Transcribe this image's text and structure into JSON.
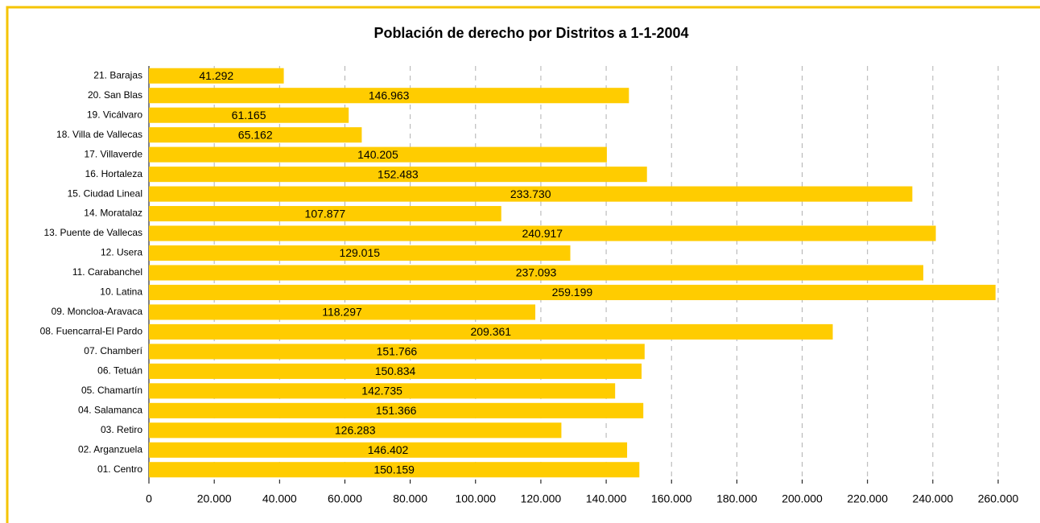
{
  "chart_data": {
    "type": "barh",
    "title": "Población de derecho por Distritos a 1-1-2004",
    "categories": [
      "21. Barajas",
      "20. San Blas",
      "19. Vicálvaro",
      "18. Villa de Vallecas",
      "17. Villaverde",
      "16. Hortaleza",
      "15. Ciudad Lineal",
      "14. Moratalaz",
      "13. Puente de Vallecas",
      "12. Usera",
      "11. Carabanchel",
      "10. Latina",
      "09. Moncloa-Aravaca",
      "08. Fuencarral-El Pardo",
      "07. Chamberí",
      "06. Tetuán",
      "05. Chamartín",
      "04. Salamanca",
      "03. Retiro",
      "02. Arganzuela",
      "01. Centro"
    ],
    "values": [
      41292,
      146963,
      61165,
      65162,
      140205,
      152483,
      233730,
      107877,
      240917,
      129015,
      237093,
      259199,
      118297,
      209361,
      151766,
      150834,
      142735,
      151366,
      126283,
      146402,
      150159
    ],
    "value_labels": [
      "41.292",
      "146.963",
      "61.165",
      "65.162",
      "140.205",
      "152.483",
      "233.730",
      "107.877",
      "240.917",
      "129.015",
      "237.093",
      "259.199",
      "118.297",
      "209.361",
      "151.766",
      "150.834",
      "142.735",
      "151.366",
      "126.283",
      "146.402",
      "150.159"
    ],
    "color": "#ffcc00",
    "xlim": [
      0,
      260000
    ],
    "xticks": [
      0,
      {
        "value": 20000,
        "label": "20.000"
      },
      {
        "value": 40000,
        "label": "40.000"
      },
      {
        "value": 60000,
        "label": "60.000"
      },
      {
        "value": 80000,
        "label": "80.000"
      },
      {
        "value": 100000,
        "label": "100.000"
      },
      {
        "value": 120000,
        "label": "120.000"
      },
      {
        "value": 140000,
        "label": "140.000"
      },
      {
        "value": 160000,
        "label": "160.000"
      },
      {
        "value": 180000,
        "label": "180.000"
      },
      {
        "value": 200000,
        "label": "200.000"
      },
      {
        "value": 220000,
        "label": "220.000"
      },
      {
        "value": 240000,
        "label": "240.000"
      },
      {
        "value": 260000,
        "label": "260.000"
      }
    ],
    "grid": true
  }
}
